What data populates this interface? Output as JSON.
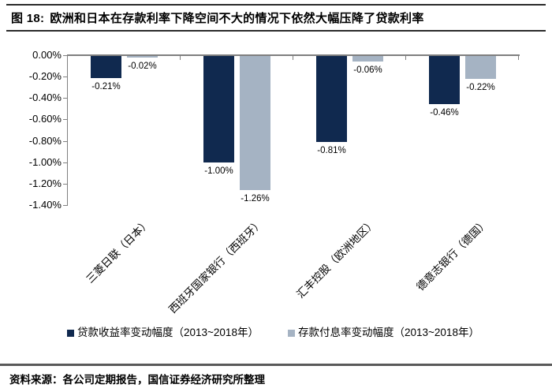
{
  "header": {
    "figure_label": "图 18:",
    "title": "欧洲和日本在存款利率下降空间不大的情况下依然大幅压降了贷款利率"
  },
  "chart_data": {
    "type": "bar",
    "categories": [
      "三菱日联（日本）",
      "西班牙国家银行（西班牙）",
      "汇丰控股（欧洲地区）",
      "德意志银行（德国）"
    ],
    "series": [
      {
        "name": "贷款收益率变动幅度（2013~2018年）",
        "color": "#10294f",
        "values": [
          -0.21,
          -1.0,
          -0.81,
          -0.46
        ],
        "labels": [
          "-0.21%",
          "-1.00%",
          "-0.81%",
          "-0.46%"
        ]
      },
      {
        "name": "存款付息率变动幅度（2013~2018年）",
        "color": "#a5b3c3",
        "values": [
          -0.02,
          -1.26,
          -0.06,
          -0.22
        ],
        "labels": [
          "-0.02%",
          "-1.26%",
          "-0.06%",
          "-0.22%"
        ]
      }
    ],
    "ylim": [
      -1.4,
      0
    ],
    "yticks": {
      "values": [
        0,
        -0.2,
        -0.4,
        -0.6,
        -0.8,
        -1.0,
        -1.2,
        -1.4
      ],
      "labels": [
        "0.00%",
        "-0.20%",
        "-0.40%",
        "-0.60%",
        "-0.80%",
        "-1.00%",
        "-1.20%",
        "-1.40%"
      ]
    },
    "grid": false,
    "legend_position": "bottom",
    "axis_color": "#808080",
    "title": "",
    "xlabel": "",
    "ylabel": ""
  },
  "source": {
    "text": "资料来源：各公司定期报告，国信证券经济研究所整理"
  }
}
